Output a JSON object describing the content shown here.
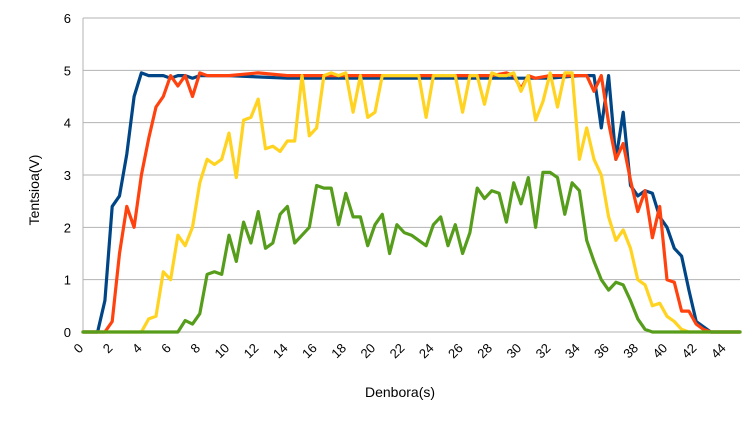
{
  "chart_data": {
    "type": "line",
    "title": "",
    "xlabel": "Denbora(s)",
    "ylabel": "Tentsioa(V)",
    "xlim": [
      0,
      45
    ],
    "ylim": [
      0,
      6
    ],
    "x_ticks": [
      0,
      2,
      4,
      6,
      8,
      10,
      12,
      14,
      16,
      18,
      20,
      22,
      24,
      26,
      28,
      30,
      32,
      34,
      36,
      38,
      40,
      42,
      44
    ],
    "y_ticks": [
      0,
      1,
      2,
      3,
      4,
      5,
      6
    ],
    "grid": "horizontal",
    "legend": "none",
    "series": [
      {
        "color": "#004586",
        "x": [
          0,
          1,
          1.5,
          2,
          2.5,
          3,
          3.5,
          4,
          4.5,
          5,
          5.5,
          6,
          6.5,
          7,
          7.5,
          8,
          10,
          14,
          16,
          20,
          24,
          28,
          32,
          34,
          35,
          35.5,
          36,
          36.5,
          37,
          37.5,
          38,
          38.5,
          39,
          39.5,
          40,
          40.5,
          41,
          41.5,
          42,
          42.5,
          43,
          44,
          45
        ],
        "y": [
          0,
          0,
          0.6,
          2.4,
          2.6,
          3.4,
          4.5,
          4.95,
          4.9,
          4.9,
          4.9,
          4.85,
          4.9,
          4.9,
          4.85,
          4.9,
          4.9,
          4.85,
          4.85,
          4.85,
          4.85,
          4.85,
          4.85,
          4.9,
          4.9,
          3.9,
          4.9,
          3.3,
          4.2,
          2.8,
          2.6,
          2.7,
          2.65,
          2.2,
          2.0,
          1.6,
          1.45,
          0.8,
          0.2,
          0.1,
          0,
          0,
          0
        ]
      },
      {
        "color": "#ff420e",
        "x": [
          0,
          1,
          1.5,
          2,
          2.5,
          3,
          3.5,
          4,
          4.5,
          5,
          5.5,
          6,
          6.5,
          7,
          7.5,
          8,
          8.5,
          10,
          12,
          14,
          16,
          18,
          20,
          22,
          24,
          26,
          28,
          29,
          29.5,
          30,
          30.5,
          31,
          32,
          33,
          34,
          34.5,
          35,
          35.5,
          36,
          36.5,
          37,
          37.5,
          38,
          38.5,
          39,
          39.5,
          40,
          40.5,
          41,
          41.5,
          42,
          42.5,
          43,
          44,
          45
        ],
        "y": [
          0,
          0,
          0,
          0.2,
          1.5,
          2.4,
          2.0,
          3.0,
          3.7,
          4.3,
          4.5,
          4.9,
          4.7,
          4.9,
          4.5,
          4.95,
          4.9,
          4.9,
          4.95,
          4.9,
          4.9,
          4.9,
          4.9,
          4.9,
          4.9,
          4.9,
          4.9,
          4.95,
          4.9,
          4.65,
          4.9,
          4.85,
          4.9,
          4.9,
          4.9,
          4.9,
          4.6,
          4.9,
          4.0,
          3.3,
          3.6,
          2.9,
          2.3,
          2.7,
          1.8,
          2.4,
          1.0,
          0.95,
          0.4,
          0.4,
          0.15,
          0.05,
          0,
          0,
          0
        ]
      },
      {
        "color": "#ffd320",
        "x": [
          0,
          3,
          3.5,
          4,
          4.5,
          5,
          5.5,
          6,
          6.5,
          7,
          7.5,
          8,
          8.5,
          9,
          9.5,
          10,
          10.5,
          11,
          11.5,
          12,
          12.5,
          13,
          13.5,
          14,
          14.5,
          15,
          15.5,
          16,
          16.5,
          17,
          17.5,
          18,
          18.5,
          19,
          19.5,
          20,
          20.5,
          21,
          22,
          23,
          23.5,
          24,
          24.5,
          25,
          25.5,
          26,
          26.5,
          27,
          27.5,
          28,
          28.5,
          29,
          29.5,
          30,
          30.5,
          31,
          31.5,
          32,
          32.5,
          33,
          33.5,
          34,
          34.5,
          35,
          35.5,
          36,
          36.5,
          37,
          37.5,
          38,
          38.5,
          39,
          39.5,
          40,
          40.5,
          41,
          41.5,
          42,
          45
        ],
        "y": [
          0,
          0,
          0,
          0,
          0.25,
          0.3,
          1.15,
          1.0,
          1.85,
          1.65,
          2.0,
          2.85,
          3.3,
          3.2,
          3.3,
          3.8,
          2.95,
          4.05,
          4.1,
          4.45,
          3.5,
          3.55,
          3.45,
          3.65,
          3.65,
          4.9,
          3.75,
          3.9,
          4.9,
          4.95,
          4.9,
          4.95,
          4.2,
          4.9,
          4.1,
          4.2,
          4.9,
          4.9,
          4.9,
          4.9,
          4.1,
          4.9,
          4.9,
          4.9,
          4.9,
          4.2,
          4.9,
          4.9,
          4.35,
          4.95,
          4.9,
          4.9,
          4.95,
          4.6,
          4.9,
          4.05,
          4.4,
          4.95,
          4.3,
          4.95,
          4.95,
          3.3,
          3.9,
          3.3,
          3.0,
          2.2,
          1.75,
          1.95,
          1.6,
          1.0,
          0.9,
          0.5,
          0.55,
          0.3,
          0.2,
          0.05,
          0,
          0,
          0
        ]
      },
      {
        "color": "#579d1c",
        "x": [
          0,
          6,
          6.5,
          7,
          7.5,
          8,
          8.5,
          9,
          9.5,
          10,
          10.5,
          11,
          11.5,
          12,
          12.5,
          13,
          13.5,
          14,
          14.5,
          15,
          15.5,
          16,
          16.5,
          17,
          17.5,
          18,
          18.5,
          19,
          19.5,
          20,
          20.5,
          21,
          21.5,
          22,
          22.5,
          23,
          23.5,
          24,
          24.5,
          25,
          25.5,
          26,
          26.5,
          27,
          27.5,
          28,
          28.5,
          29,
          29.5,
          30,
          30.5,
          31,
          31.5,
          32,
          32.5,
          33,
          33.5,
          34,
          34.5,
          35,
          35.5,
          36,
          36.5,
          37,
          37.5,
          38,
          38.5,
          39,
          40,
          45
        ],
        "y": [
          0,
          0,
          0,
          0.22,
          0.15,
          0.35,
          1.1,
          1.15,
          1.1,
          1.85,
          1.35,
          2.1,
          1.7,
          2.3,
          1.6,
          1.7,
          2.25,
          2.4,
          1.7,
          1.85,
          2.0,
          2.8,
          2.75,
          2.75,
          2.05,
          2.65,
          2.2,
          2.2,
          1.65,
          2.05,
          2.25,
          1.5,
          2.05,
          1.9,
          1.85,
          1.75,
          1.65,
          2.05,
          2.2,
          1.65,
          2.05,
          1.5,
          1.9,
          2.75,
          2.55,
          2.7,
          2.65,
          2.1,
          2.85,
          2.45,
          2.95,
          2.0,
          3.05,
          3.05,
          2.95,
          2.25,
          2.85,
          2.7,
          1.75,
          1.35,
          1.0,
          0.8,
          0.95,
          0.9,
          0.6,
          0.25,
          0.05,
          0,
          0,
          0
        ]
      }
    ]
  }
}
